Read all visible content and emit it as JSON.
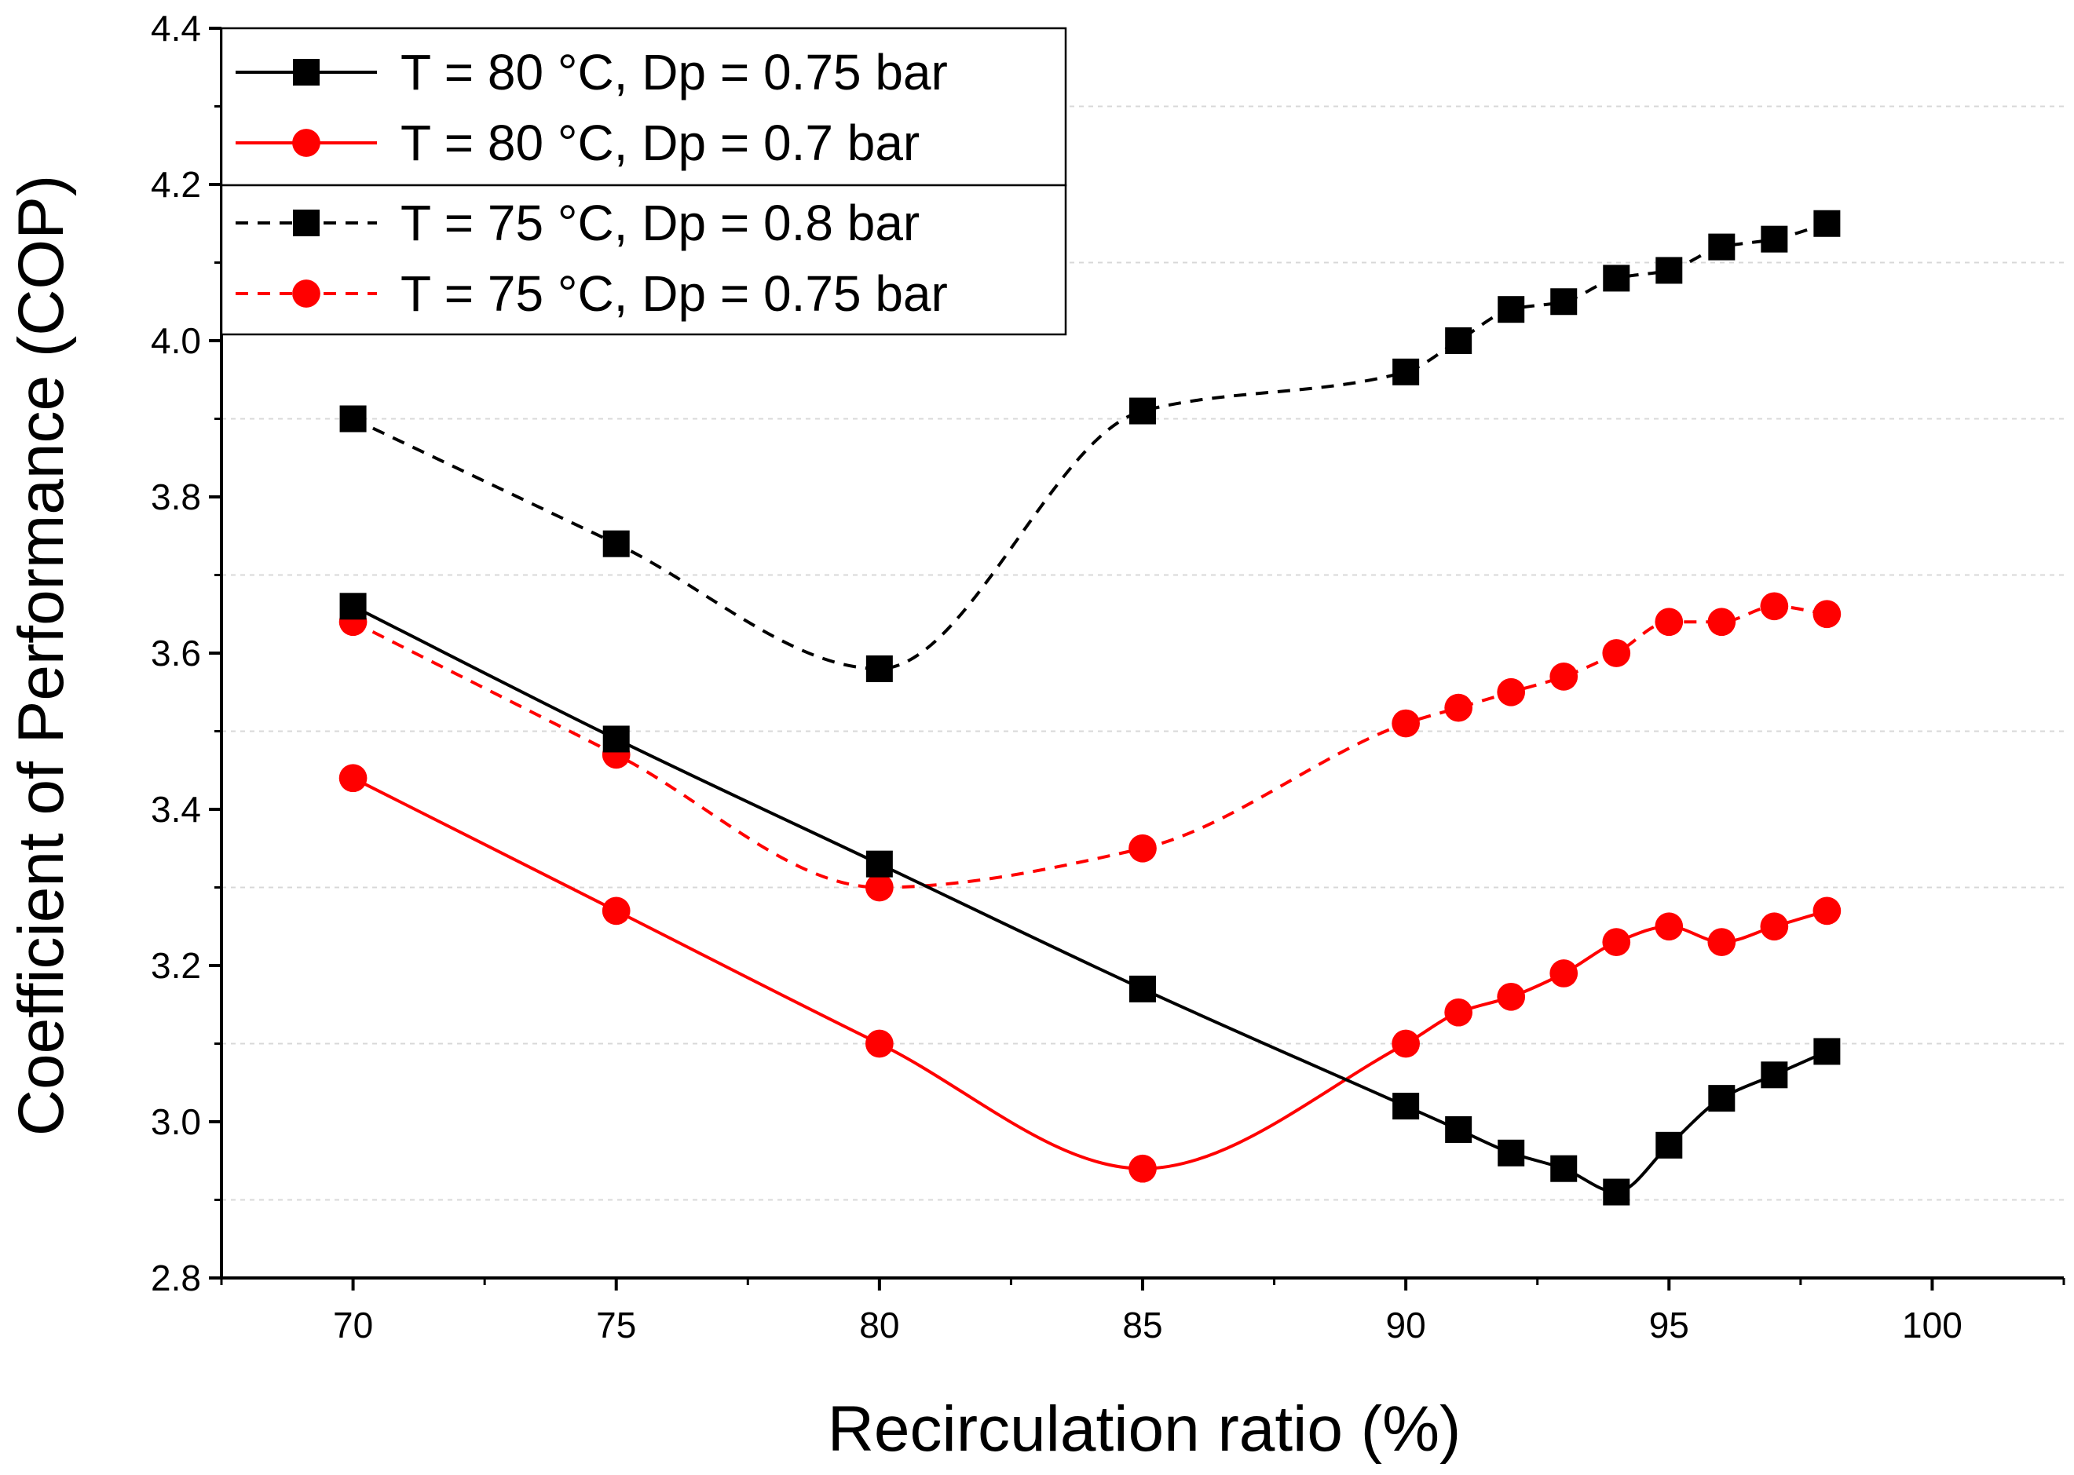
{
  "chart_data": {
    "type": "line",
    "title": "",
    "xlabel": "Recirculation ratio (%)",
    "ylabel": "Coefficient of Performance (COP)",
    "xlim": [
      67.5,
      102.5
    ],
    "ylim": [
      2.8,
      4.4
    ],
    "xticks": [
      70,
      75,
      80,
      85,
      90,
      95,
      100
    ],
    "yticks": [
      2.8,
      3.0,
      3.2,
      3.4,
      3.6,
      3.8,
      4.0,
      4.2,
      4.4
    ],
    "grid": "horizontal minor dashed",
    "legend_position": "top-left",
    "series": [
      {
        "name": "T = 80 °C, Dp = 0.75 bar",
        "color": "#000000",
        "marker": "square",
        "line_style": "solid",
        "x": [
          70,
          75,
          80,
          85,
          90,
          91,
          92,
          93,
          94,
          95,
          96,
          97,
          98
        ],
        "y": [
          3.66,
          3.49,
          3.33,
          3.17,
          3.02,
          2.99,
          2.96,
          2.94,
          2.91,
          2.97,
          3.03,
          3.06,
          3.09
        ]
      },
      {
        "name": "T = 80 °C, Dp = 0.7 bar",
        "color": "#ff0000",
        "marker": "circle",
        "line_style": "solid",
        "x": [
          70,
          75,
          80,
          85,
          90,
          91,
          92,
          93,
          94,
          95,
          96,
          97,
          98
        ],
        "y": [
          3.44,
          3.27,
          3.1,
          2.94,
          3.1,
          3.14,
          3.16,
          3.19,
          3.23,
          3.25,
          3.23,
          3.25,
          3.27
        ]
      },
      {
        "name": "T = 75 °C, Dp = 0.8 bar",
        "color": "#000000",
        "marker": "square",
        "line_style": "dashed",
        "x": [
          70,
          75,
          80,
          85,
          90,
          91,
          92,
          93,
          94,
          95,
          96,
          97,
          98
        ],
        "y": [
          3.9,
          3.74,
          3.58,
          3.91,
          3.96,
          4.0,
          4.04,
          4.05,
          4.08,
          4.09,
          4.12,
          4.13,
          4.15
        ]
      },
      {
        "name": "T = 75 °C, Dp = 0.75 bar",
        "color": "#ff0000",
        "marker": "circle",
        "line_style": "dashed",
        "x": [
          70,
          75,
          80,
          85,
          90,
          91,
          92,
          93,
          94,
          95,
          96,
          97,
          98
        ],
        "y": [
          3.64,
          3.47,
          3.3,
          3.35,
          3.51,
          3.53,
          3.55,
          3.57,
          3.6,
          3.64,
          3.64,
          3.66,
          3.65
        ]
      }
    ]
  }
}
